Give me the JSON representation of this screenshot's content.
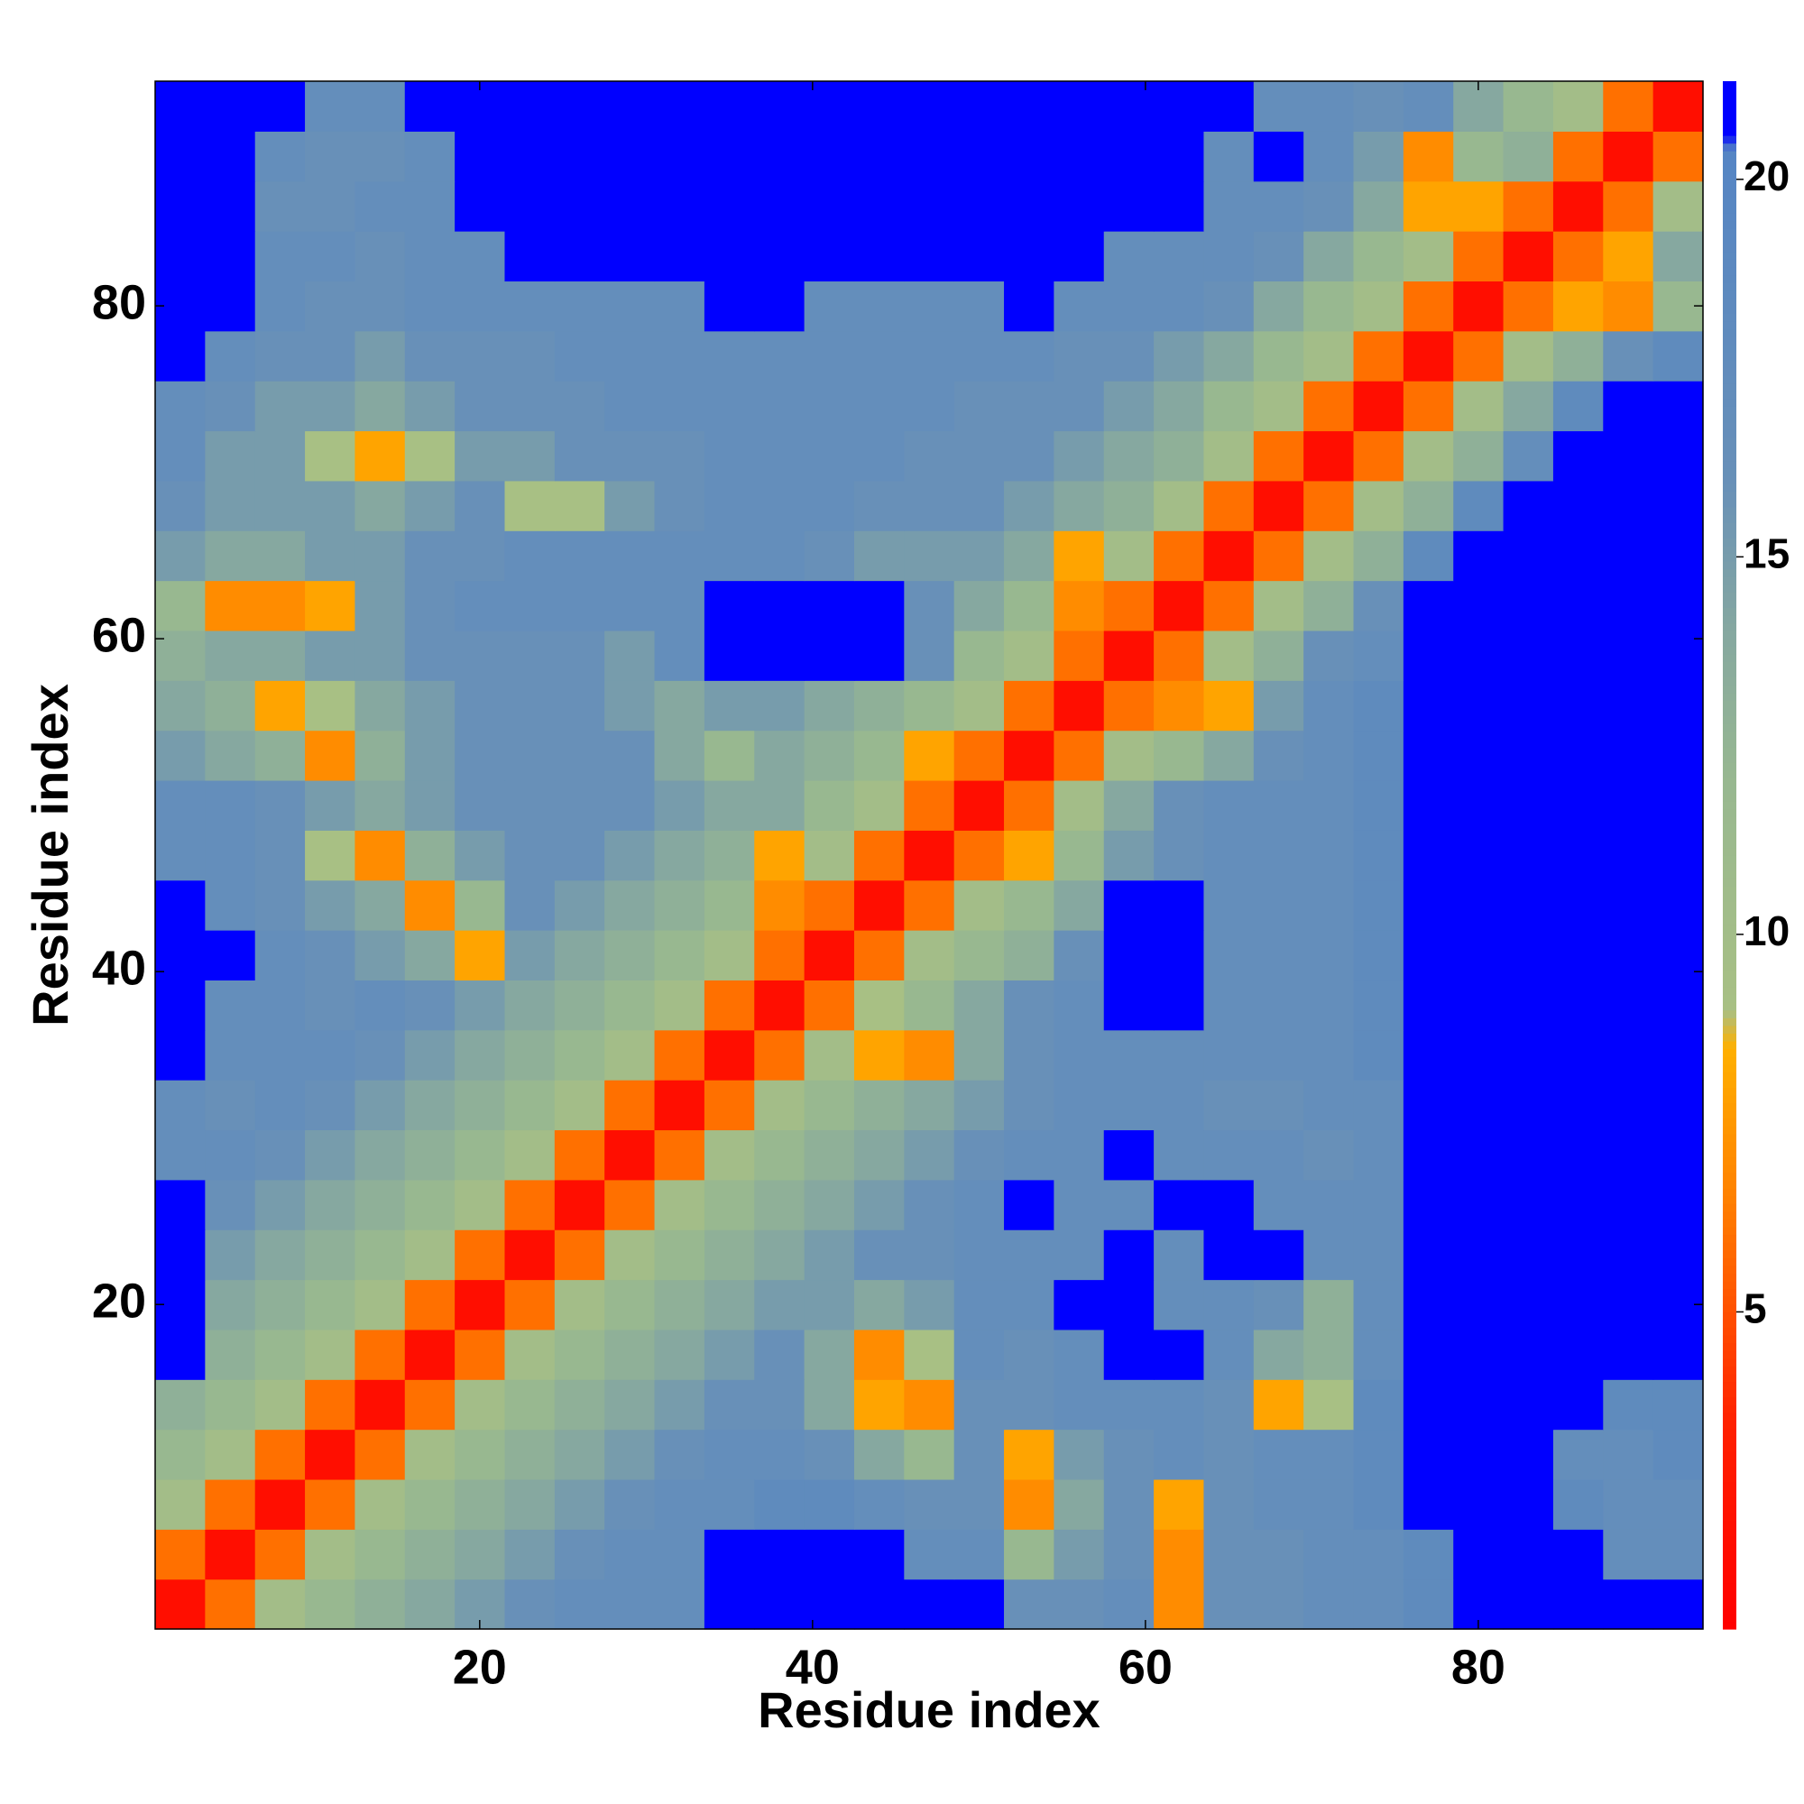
{
  "chart_data": {
    "type": "heatmap",
    "xlabel": "Residue index",
    "ylabel": "Residue index",
    "x": [
      2,
      5,
      8,
      11,
      14,
      17,
      20,
      23,
      26,
      29,
      32,
      35,
      38,
      41,
      44,
      47,
      50,
      53,
      56,
      59,
      62,
      65,
      68,
      71,
      74,
      77,
      80,
      83,
      86,
      89,
      92
    ],
    "y": [
      2,
      5,
      8,
      11,
      14,
      17,
      20,
      23,
      26,
      29,
      32,
      35,
      38,
      41,
      44,
      47,
      50,
      53,
      56,
      59,
      62,
      65,
      68,
      71,
      74,
      77,
      80,
      83,
      86,
      89,
      92
    ],
    "xlim": [
      0.5,
      93.5
    ],
    "ylim": [
      0.5,
      93.5
    ],
    "xticks": [
      20,
      40,
      60,
      80
    ],
    "yticks": [
      20,
      40,
      60,
      80
    ],
    "colorbar": {
      "lim": [
        0.8,
        21.3
      ],
      "ticks": [
        5,
        10,
        15,
        20
      ]
    },
    "colorscale": [
      [
        0.8,
        "#ff0000"
      ],
      [
        3.5,
        "#ff2000"
      ],
      [
        5,
        "#ff5000"
      ],
      [
        6.5,
        "#ff8000"
      ],
      [
        8.5,
        "#ffb000"
      ],
      [
        9,
        "#a8c084"
      ],
      [
        12,
        "#98b890"
      ],
      [
        14,
        "#86a8a0"
      ],
      [
        16,
        "#6890b8"
      ],
      [
        20.4,
        "#5585c4"
      ],
      [
        20.6,
        "#0000ff"
      ],
      [
        21.3,
        "#0000ff"
      ]
    ],
    "values": [
      [
        2,
        6,
        10,
        12,
        13,
        14,
        15,
        16,
        17,
        17,
        17,
        21,
        21,
        21,
        21,
        21,
        21,
        16,
        16,
        17,
        7,
        16,
        16,
        17,
        17,
        18,
        21,
        21,
        21,
        21,
        21
      ],
      [
        6,
        2,
        6,
        10,
        12,
        13,
        14,
        15,
        16,
        17,
        17,
        21,
        21,
        21,
        21,
        17,
        17,
        12,
        15,
        16,
        7,
        16,
        16,
        17,
        17,
        18,
        21,
        21,
        21,
        17,
        17
      ],
      [
        10,
        6,
        2,
        6,
        10,
        12,
        13,
        14,
        15,
        16,
        17,
        17,
        18,
        18,
        17,
        16,
        16,
        7,
        14,
        16,
        8,
        16,
        17,
        17,
        18,
        21,
        21,
        21,
        18,
        17,
        17
      ],
      [
        12,
        10,
        6,
        2,
        6,
        10,
        12,
        13,
        14,
        15,
        16,
        17,
        17,
        16,
        14,
        12,
        16,
        8,
        15,
        16,
        17,
        16,
        17,
        17,
        18,
        21,
        21,
        21,
        17,
        17,
        18
      ],
      [
        13,
        12,
        10,
        6,
        2,
        6,
        10,
        12,
        13,
        14,
        15,
        16,
        16,
        14,
        8,
        7,
        16,
        16,
        17,
        17,
        17,
        16,
        8,
        9,
        18,
        21,
        21,
        21,
        21,
        18,
        18
      ],
      [
        21,
        13,
        12,
        10,
        6,
        2,
        6,
        10,
        12,
        13,
        14,
        15,
        16,
        14,
        7,
        9,
        17,
        16,
        17,
        21,
        21,
        17,
        14,
        13,
        17,
        21,
        21,
        21,
        21,
        21,
        21
      ],
      [
        21,
        14,
        13,
        12,
        10,
        6,
        2,
        6,
        10,
        12,
        13,
        14,
        15,
        15,
        14,
        15,
        17,
        17,
        21,
        21,
        17,
        17,
        16,
        13,
        17,
        21,
        21,
        21,
        21,
        21,
        21
      ],
      [
        21,
        15,
        14,
        13,
        12,
        10,
        6,
        2,
        6,
        10,
        12,
        13,
        14,
        15,
        16,
        16,
        17,
        17,
        17,
        21,
        17,
        21,
        21,
        17,
        17,
        21,
        21,
        21,
        21,
        21,
        21
      ],
      [
        21,
        16,
        15,
        14,
        13,
        12,
        10,
        6,
        2,
        6,
        10,
        12,
        13,
        14,
        15,
        16,
        17,
        21,
        17,
        17,
        21,
        21,
        17,
        17,
        17,
        21,
        21,
        21,
        21,
        21,
        21
      ],
      [
        17,
        17,
        16,
        15,
        14,
        13,
        12,
        10,
        6,
        2,
        6,
        10,
        12,
        13,
        14,
        15,
        16,
        17,
        17,
        21,
        17,
        17,
        17,
        16,
        17,
        21,
        21,
        21,
        21,
        21,
        21
      ],
      [
        17,
        16,
        17,
        16,
        15,
        14,
        13,
        12,
        10,
        6,
        2,
        6,
        10,
        12,
        13,
        14,
        15,
        16,
        17,
        17,
        17,
        16,
        16,
        17,
        17,
        21,
        21,
        21,
        21,
        21,
        21
      ],
      [
        21,
        17,
        17,
        17,
        16,
        15,
        14,
        13,
        12,
        10,
        6,
        2,
        6,
        10,
        8,
        7,
        14,
        16,
        17,
        17,
        17,
        17,
        17,
        17,
        18,
        21,
        21,
        21,
        21,
        21,
        21
      ],
      [
        21,
        17,
        17,
        16,
        17,
        16,
        15,
        14,
        13,
        12,
        10,
        6,
        2,
        6,
        9,
        12,
        14,
        16,
        17,
        21,
        21,
        17,
        17,
        17,
        18,
        21,
        21,
        21,
        21,
        21,
        21
      ],
      [
        21,
        21,
        17,
        16,
        15,
        14,
        8,
        15,
        14,
        13,
        12,
        10,
        6,
        2,
        6,
        10,
        12,
        13,
        16,
        21,
        21,
        17,
        17,
        17,
        18,
        21,
        21,
        21,
        21,
        21,
        21
      ],
      [
        21,
        17,
        16,
        15,
        14,
        7,
        12,
        16,
        15,
        14,
        13,
        12,
        7,
        6,
        2,
        6,
        10,
        12,
        14,
        21,
        21,
        17,
        17,
        17,
        18,
        21,
        21,
        21,
        21,
        21,
        21
      ],
      [
        17,
        17,
        16,
        9,
        7,
        13,
        15,
        16,
        16,
        15,
        14,
        13,
        8,
        10,
        6,
        2,
        6,
        8,
        12,
        15,
        16,
        17,
        17,
        17,
        18,
        21,
        21,
        21,
        21,
        21,
        21
      ],
      [
        17,
        17,
        16,
        15,
        14,
        15,
        16,
        16,
        16,
        16,
        15,
        14,
        14,
        12,
        10,
        6,
        2,
        6,
        10,
        14,
        16,
        17,
        17,
        17,
        18,
        21,
        21,
        21,
        21,
        21,
        21
      ],
      [
        15,
        14,
        13,
        7,
        13,
        15,
        16,
        16,
        16,
        16,
        14,
        12,
        14,
        13,
        12,
        8,
        6,
        2,
        6,
        10,
        12,
        14,
        16,
        17,
        18,
        21,
        21,
        21,
        21,
        21,
        21
      ],
      [
        14,
        13,
        8,
        9,
        14,
        15,
        16,
        16,
        16,
        15,
        14,
        15,
        15,
        14,
        13,
        12,
        10,
        6,
        2,
        6,
        7,
        8,
        15,
        17,
        18,
        21,
        21,
        21,
        21,
        21,
        21
      ],
      [
        13,
        14,
        14,
        15,
        15,
        16,
        16,
        16,
        16,
        15,
        17,
        21,
        21,
        21,
        21,
        16,
        12,
        10,
        6,
        2,
        6,
        10,
        13,
        16,
        17,
        21,
        21,
        21,
        21,
        21,
        21
      ],
      [
        12,
        7,
        7,
        8,
        15,
        16,
        17,
        17,
        17,
        17,
        17,
        21,
        21,
        21,
        21,
        16,
        14,
        12,
        7,
        6,
        2,
        6,
        10,
        13,
        16,
        21,
        21,
        21,
        21,
        21,
        21
      ],
      [
        15,
        14,
        14,
        15,
        15,
        16,
        16,
        17,
        17,
        17,
        17,
        17,
        17,
        16,
        15,
        15,
        15,
        14,
        8,
        10,
        6,
        2,
        6,
        10,
        13,
        18,
        21,
        21,
        21,
        21,
        21
      ],
      [
        16,
        15,
        15,
        15,
        14,
        15,
        16,
        9,
        9,
        15,
        16,
        17,
        17,
        17,
        16,
        16,
        16,
        15,
        14,
        13,
        10,
        6,
        2,
        6,
        10,
        13,
        18,
        21,
        21,
        21,
        21
      ],
      [
        17,
        15,
        15,
        9,
        8,
        9,
        15,
        15,
        16,
        16,
        16,
        17,
        17,
        17,
        17,
        16,
        16,
        16,
        15,
        14,
        13,
        10,
        6,
        2,
        6,
        10,
        13,
        17,
        21,
        21,
        21
      ],
      [
        17,
        16,
        15,
        15,
        14,
        15,
        16,
        16,
        16,
        17,
        17,
        17,
        17,
        17,
        17,
        17,
        16,
        16,
        16,
        15,
        14,
        12,
        10,
        6,
        2,
        6,
        10,
        14,
        18,
        21,
        21
      ],
      [
        21,
        17,
        16,
        16,
        15,
        16,
        16,
        16,
        17,
        17,
        17,
        17,
        17,
        17,
        17,
        17,
        17,
        17,
        16,
        16,
        15,
        14,
        12,
        10,
        6,
        2,
        6,
        10,
        13,
        16,
        18
      ],
      [
        21,
        21,
        17,
        16,
        16,
        17,
        17,
        17,
        17,
        17,
        17,
        21,
        21,
        17,
        17,
        17,
        17,
        21,
        17,
        17,
        17,
        16,
        14,
        12,
        10,
        6,
        2,
        6,
        8,
        7,
        12
      ],
      [
        21,
        21,
        17,
        17,
        16,
        17,
        17,
        21,
        21,
        21,
        21,
        21,
        21,
        21,
        21,
        21,
        21,
        21,
        21,
        17,
        17,
        17,
        16,
        14,
        12,
        10,
        6,
        2,
        6,
        8,
        14
      ],
      [
        21,
        21,
        16,
        16,
        17,
        17,
        21,
        21,
        21,
        21,
        21,
        21,
        21,
        21,
        21,
        21,
        21,
        21,
        21,
        21,
        21,
        17,
        17,
        16,
        14,
        8,
        8,
        6,
        2,
        6,
        10
      ],
      [
        21,
        21,
        17,
        16,
        16,
        17,
        21,
        21,
        21,
        21,
        21,
        21,
        21,
        21,
        21,
        21,
        21,
        21,
        21,
        21,
        21,
        17,
        21,
        17,
        15,
        7,
        12,
        13,
        6,
        2,
        6
      ],
      [
        21,
        21,
        21,
        17,
        17,
        21,
        21,
        21,
        21,
        21,
        21,
        21,
        21,
        21,
        21,
        21,
        21,
        21,
        21,
        21,
        21,
        21,
        17,
        17,
        16,
        17,
        14,
        12,
        10,
        6,
        2
      ]
    ]
  }
}
